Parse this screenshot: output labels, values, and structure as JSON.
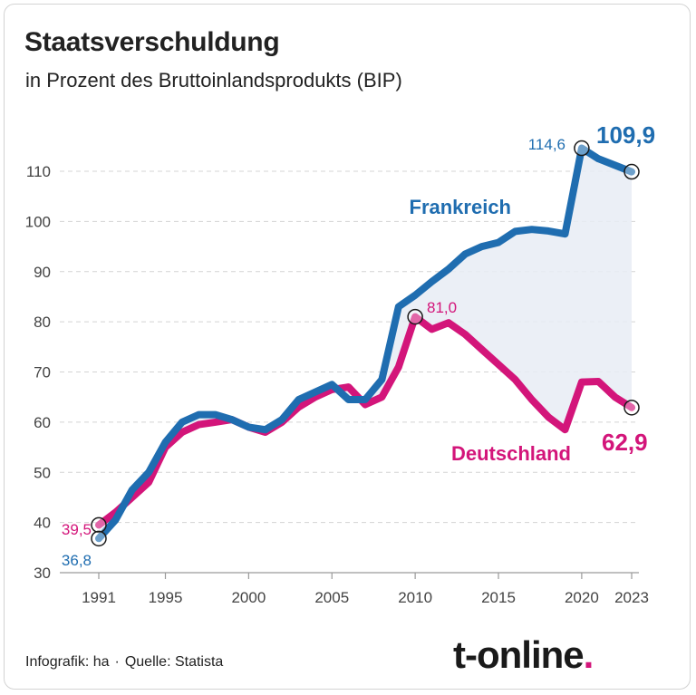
{
  "title": "Staatsverschuldung",
  "subtitle": "in Prozent des Bruttoinlandsprodukts (BIP)",
  "footer": {
    "credit": "Infografik: ha",
    "source": "Quelle: Statista"
  },
  "logo": {
    "text": "t-online",
    "dot": "."
  },
  "chart_data": {
    "type": "line",
    "title": "Staatsverschuldung",
    "subtitle": "in Prozent des Bruttoinlandsprodukts (BIP)",
    "xlabel": "",
    "ylabel": "",
    "xlim": [
      1991,
      2023
    ],
    "ylim": [
      30,
      115
    ],
    "x_ticks": [
      1991,
      1995,
      2000,
      2005,
      2010,
      2015,
      2020,
      2023
    ],
    "y_ticks": [
      30,
      40,
      50,
      60,
      70,
      80,
      90,
      100,
      110
    ],
    "grid": "horizontal-dashed",
    "x": [
      1991,
      1992,
      1993,
      1994,
      1995,
      1996,
      1997,
      1998,
      1999,
      2000,
      2001,
      2002,
      2003,
      2004,
      2005,
      2006,
      2007,
      2008,
      2009,
      2010,
      2011,
      2012,
      2013,
      2014,
      2015,
      2016,
      2017,
      2018,
      2019,
      2020,
      2021,
      2022,
      2023
    ],
    "series": [
      {
        "name": "Frankreich",
        "color": "#1f6db0",
        "values": [
          36.8,
          40.5,
          46.5,
          50,
          56,
          60,
          61.5,
          61.5,
          60.5,
          59,
          58.5,
          60.5,
          64.5,
          66,
          67.5,
          64.5,
          64.5,
          68.5,
          83,
          85.3,
          88,
          90.5,
          93.5,
          95,
          95.8,
          98,
          98.4,
          98.1,
          97.5,
          114.6,
          112.5,
          111.2,
          109.9
        ]
      },
      {
        "name": "Deutschland",
        "color": "#d3157a",
        "values": [
          39.5,
          42,
          45,
          48,
          55,
          58,
          59.5,
          60,
          60.5,
          59,
          58,
          60,
          63,
          65,
          66.5,
          67,
          63.5,
          65,
          71,
          81.0,
          78.5,
          79.8,
          77.5,
          74.5,
          71.5,
          68.5,
          64.5,
          61,
          58.5,
          68,
          68.1,
          65,
          62.9
        ]
      }
    ],
    "labels": {
      "fr_start": "36,8",
      "de_start": "39,5",
      "fr_peak": "114,6",
      "fr_end": "109,9",
      "de_2010": "81,0",
      "de_end": "62,9",
      "fr_name": "Frankreich",
      "de_name": "Deutschland"
    },
    "fill_between": true,
    "fill_color": "#e8ecf5"
  }
}
